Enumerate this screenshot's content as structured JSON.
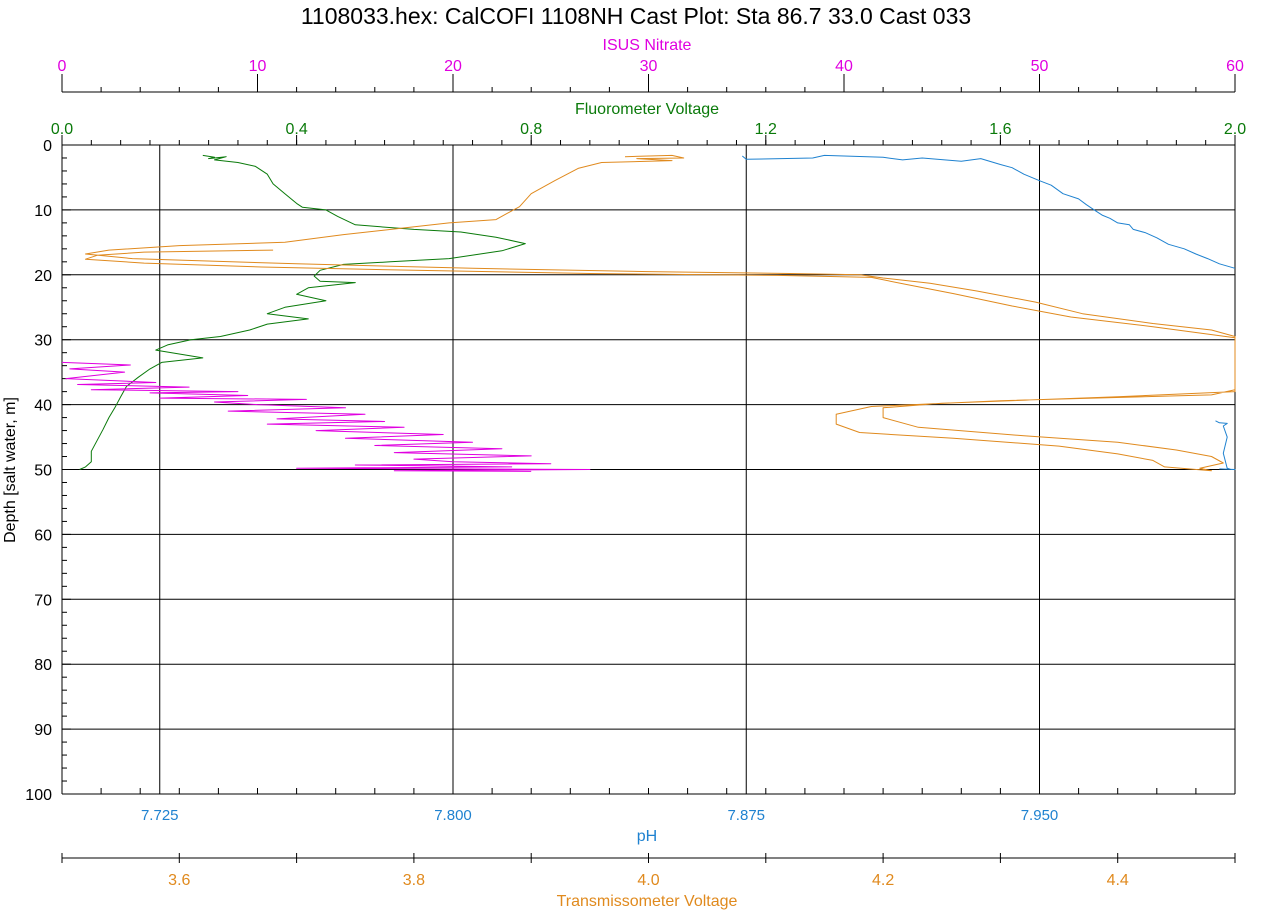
{
  "chart_data": {
    "type": "line",
    "title": "1108033.hex:  CalCOFI 1108NH Cast Plot: Sta 86.7 33.0  Cast 033",
    "colors": {
      "nitrate": "#e000e0",
      "fluorometer": "#0a7a0a",
      "ph": "#1f82d0",
      "transmissometer": "#e08a1e",
      "grid": "#000000"
    },
    "axes": {
      "depth": {
        "label": "Depth [salt water, m]",
        "range": [
          0,
          100
        ],
        "reversed": true,
        "ticks": [
          0,
          10,
          20,
          30,
          40,
          50,
          60,
          70,
          80,
          90,
          100
        ],
        "tick_labels": [
          "0",
          "10",
          "20",
          "30",
          "40",
          "50",
          "60",
          "70",
          "80",
          "90",
          "100"
        ]
      },
      "nitrate": {
        "label": "ISUS Nitrate",
        "position": "top",
        "range": [
          0,
          60
        ],
        "ticks": [
          0,
          10,
          20,
          30,
          40,
          50,
          60
        ],
        "tick_labels": [
          "0",
          "10",
          "20",
          "30",
          "40",
          "50",
          "60"
        ]
      },
      "fluorometer": {
        "label": "Fluorometer Voltage",
        "position": "top",
        "range": [
          0.0,
          2.0
        ],
        "ticks": [
          0.0,
          0.4,
          0.8,
          1.2,
          1.6,
          2.0
        ],
        "tick_labels": [
          "0.0",
          "0.4",
          "0.8",
          "1.2",
          "1.6",
          "2.0"
        ]
      },
      "ph": {
        "label": "pH",
        "position": "bottom",
        "range": [
          7.7,
          8.0
        ],
        "ticks": [
          7.725,
          7.8,
          7.875,
          7.95
        ],
        "tick_labels": [
          "7.725",
          "7.800",
          "7.875",
          "7.950"
        ]
      },
      "transmissometer": {
        "label": "Transmissometer Voltage",
        "position": "bottom",
        "range": [
          3.5,
          4.5
        ],
        "ticks": [
          3.6,
          3.8,
          4.0,
          4.2,
          4.4
        ],
        "tick_labels": [
          "3.6",
          "3.8",
          "4.0",
          "4.2",
          "4.4"
        ]
      }
    },
    "grid": true,
    "series": [
      {
        "axis": "fluorometer",
        "points": [
          [
            0.24,
            1.6
          ],
          [
            0.26,
            1.9
          ],
          [
            0.25,
            2.1
          ],
          [
            0.28,
            1.8
          ],
          [
            0.26,
            2.3
          ],
          [
            0.3,
            2.7
          ],
          [
            0.33,
            3.3
          ],
          [
            0.35,
            4.5
          ],
          [
            0.36,
            6.0
          ],
          [
            0.38,
            7.5
          ],
          [
            0.4,
            9.0
          ],
          [
            0.41,
            9.6
          ],
          [
            0.45,
            10.0
          ],
          [
            0.47,
            11.0
          ],
          [
            0.5,
            12.3
          ],
          [
            0.6,
            13.0
          ],
          [
            0.68,
            13.4
          ],
          [
            0.74,
            14.2
          ],
          [
            0.79,
            15.2
          ],
          [
            0.75,
            16.3
          ],
          [
            0.66,
            17.5
          ],
          [
            0.56,
            18.0
          ],
          [
            0.48,
            18.4
          ],
          [
            0.44,
            19.3
          ],
          [
            0.43,
            20.2
          ],
          [
            0.44,
            21.0
          ],
          [
            0.5,
            21.2
          ],
          [
            0.42,
            22.0
          ],
          [
            0.4,
            23.0
          ],
          [
            0.45,
            24.0
          ],
          [
            0.38,
            25.0
          ],
          [
            0.35,
            26.0
          ],
          [
            0.42,
            26.8
          ],
          [
            0.35,
            27.6
          ],
          [
            0.32,
            28.5
          ],
          [
            0.27,
            29.5
          ],
          [
            0.22,
            30.0
          ],
          [
            0.18,
            30.8
          ],
          [
            0.16,
            31.6
          ],
          [
            0.2,
            32.2
          ],
          [
            0.24,
            32.8
          ],
          [
            0.17,
            33.5
          ],
          [
            0.15,
            34.5
          ],
          [
            0.13,
            35.8
          ],
          [
            0.11,
            37.2
          ],
          [
            0.1,
            38.8
          ],
          [
            0.09,
            40.5
          ],
          [
            0.08,
            42.0
          ],
          [
            0.07,
            43.8
          ],
          [
            0.06,
            45.5
          ],
          [
            0.05,
            47.2
          ],
          [
            0.05,
            48.8
          ],
          [
            0.04,
            49.6
          ],
          [
            0.03,
            50.0
          ]
        ]
      },
      {
        "axis": "nitrate",
        "points": [
          [
            0.0,
            33.5
          ],
          [
            3.5,
            33.9
          ],
          [
            0.4,
            34.5
          ],
          [
            3.2,
            35.0
          ],
          [
            0.2,
            36.0
          ],
          [
            4.8,
            36.6
          ],
          [
            0.8,
            36.9
          ],
          [
            6.5,
            37.3
          ],
          [
            1.5,
            37.7
          ],
          [
            9.0,
            38.0
          ],
          [
            4.5,
            38.2
          ],
          [
            9.5,
            38.6
          ],
          [
            5.0,
            39.0
          ],
          [
            12.5,
            39.2
          ],
          [
            7.8,
            39.6
          ],
          [
            10.0,
            40.0
          ],
          [
            14.5,
            40.5
          ],
          [
            8.5,
            41.0
          ],
          [
            15.5,
            41.5
          ],
          [
            11.0,
            42.2
          ],
          [
            16.5,
            42.6
          ],
          [
            10.5,
            43.0
          ],
          [
            17.5,
            43.5
          ],
          [
            13.0,
            44.0
          ],
          [
            19.5,
            44.6
          ],
          [
            14.5,
            45.2
          ],
          [
            21.0,
            45.8
          ],
          [
            16.0,
            46.3
          ],
          [
            22.5,
            46.8
          ],
          [
            17.0,
            47.4
          ],
          [
            24.0,
            47.9
          ],
          [
            18.0,
            48.4
          ],
          [
            20.0,
            48.8
          ],
          [
            25.0,
            49.1
          ],
          [
            15.0,
            49.3
          ],
          [
            23.0,
            49.6
          ],
          [
            12.0,
            49.8
          ],
          [
            27.0,
            50.0
          ],
          [
            17.0,
            50.2
          ],
          [
            24.0,
            50.3
          ]
        ]
      },
      {
        "axis": "transmissometer",
        "points": [
          [
            3.98,
            1.8
          ],
          [
            4.02,
            1.6
          ],
          [
            4.03,
            2.0
          ],
          [
            3.99,
            2.1
          ],
          [
            4.02,
            2.4
          ],
          [
            3.96,
            2.7
          ],
          [
            3.94,
            3.6
          ],
          [
            3.92,
            5.5
          ],
          [
            3.9,
            7.5
          ],
          [
            3.89,
            9.5
          ],
          [
            3.88,
            10.5
          ],
          [
            3.87,
            11.5
          ],
          [
            3.83,
            12.0
          ],
          [
            3.79,
            12.8
          ],
          [
            3.74,
            13.8
          ],
          [
            3.69,
            15.0
          ],
          [
            3.6,
            15.5
          ],
          [
            3.54,
            16.2
          ],
          [
            3.52,
            16.8
          ],
          [
            3.56,
            17.5
          ],
          [
            3.7,
            18.3
          ],
          [
            3.85,
            19.0
          ],
          [
            4.0,
            19.5
          ],
          [
            4.12,
            19.8
          ],
          [
            4.18,
            20.0
          ],
          [
            4.2,
            20.5
          ],
          [
            4.24,
            21.3
          ],
          [
            4.28,
            22.5
          ],
          [
            4.33,
            24.2
          ],
          [
            4.37,
            26.0
          ],
          [
            4.43,
            27.5
          ],
          [
            4.48,
            28.5
          ],
          [
            4.52,
            29.5
          ],
          [
            4.58,
            31.0
          ],
          [
            4.62,
            32.5
          ],
          [
            4.64,
            34.0
          ],
          [
            4.65,
            35.5
          ],
          [
            4.64,
            37.0
          ],
          [
            4.55,
            38.0
          ],
          [
            4.4,
            38.8
          ],
          [
            4.25,
            39.8
          ],
          [
            4.2,
            40.5
          ],
          [
            4.2,
            42.0
          ],
          [
            4.23,
            43.5
          ],
          [
            4.32,
            44.8
          ],
          [
            4.4,
            45.8
          ],
          [
            4.45,
            47.0
          ],
          [
            4.48,
            48.0
          ],
          [
            4.49,
            49.0
          ],
          [
            4.47,
            49.8
          ],
          [
            4.48,
            50.2
          ],
          [
            4.44,
            49.6
          ],
          [
            4.43,
            48.6
          ],
          [
            4.4,
            47.6
          ],
          [
            4.35,
            46.4
          ],
          [
            4.26,
            45.2
          ],
          [
            4.18,
            44.3
          ],
          [
            4.16,
            43.0
          ],
          [
            4.16,
            41.5
          ],
          [
            4.19,
            40.3
          ],
          [
            4.3,
            39.4
          ],
          [
            4.48,
            38.5
          ],
          [
            4.6,
            37.7
          ],
          [
            4.66,
            36.6
          ],
          [
            4.66,
            35.2
          ],
          [
            4.64,
            33.5
          ],
          [
            4.59,
            31.6
          ],
          [
            4.5,
            29.7
          ],
          [
            4.43,
            28.0
          ],
          [
            4.36,
            26.5
          ],
          [
            4.31,
            24.8
          ],
          [
            4.26,
            22.9
          ],
          [
            4.22,
            21.5
          ],
          [
            4.19,
            20.4
          ],
          [
            4.11,
            20.1
          ],
          [
            3.95,
            19.8
          ],
          [
            3.8,
            19.3
          ],
          [
            3.67,
            18.8
          ],
          [
            3.57,
            18.2
          ],
          [
            3.52,
            17.6
          ],
          [
            3.53,
            17.0
          ],
          [
            3.57,
            16.5
          ],
          [
            3.68,
            16.2
          ]
        ]
      },
      {
        "axis": "ph",
        "points": [
          [
            7.874,
            1.7
          ],
          [
            7.875,
            2.2
          ],
          [
            7.892,
            2.0
          ],
          [
            7.895,
            1.6
          ],
          [
            7.91,
            1.9
          ],
          [
            7.915,
            2.3
          ],
          [
            7.92,
            2.0
          ],
          [
            7.93,
            2.5
          ],
          [
            7.935,
            2.1
          ],
          [
            7.94,
            3.0
          ],
          [
            7.943,
            3.5
          ],
          [
            7.946,
            4.5
          ],
          [
            7.95,
            5.5
          ],
          [
            7.953,
            6.2
          ],
          [
            7.956,
            7.5
          ],
          [
            7.96,
            8.3
          ],
          [
            7.962,
            9.2
          ],
          [
            7.964,
            10.0
          ],
          [
            7.966,
            10.8
          ],
          [
            7.968,
            11.3
          ],
          [
            7.97,
            12.0
          ],
          [
            7.973,
            12.3
          ],
          [
            7.974,
            13.0
          ],
          [
            7.977,
            13.5
          ],
          [
            7.98,
            14.3
          ],
          [
            7.983,
            15.3
          ],
          [
            7.987,
            16.0
          ],
          [
            7.99,
            16.8
          ],
          [
            7.993,
            17.5
          ],
          [
            7.996,
            18.3
          ],
          [
            8.0,
            19.0
          ]
        ]
      },
      {
        "axis": "ph",
        "points": [
          [
            7.995,
            42.5
          ],
          [
            7.996,
            42.8
          ],
          [
            7.998,
            42.9
          ],
          [
            7.997,
            43.3
          ],
          [
            7.998,
            45.0
          ],
          [
            7.997,
            47.5
          ],
          [
            7.998,
            49.8
          ],
          [
            7.999,
            50.0
          ],
          [
            8.0,
            50.0
          ],
          [
            7.996,
            49.9
          ]
        ]
      }
    ]
  }
}
